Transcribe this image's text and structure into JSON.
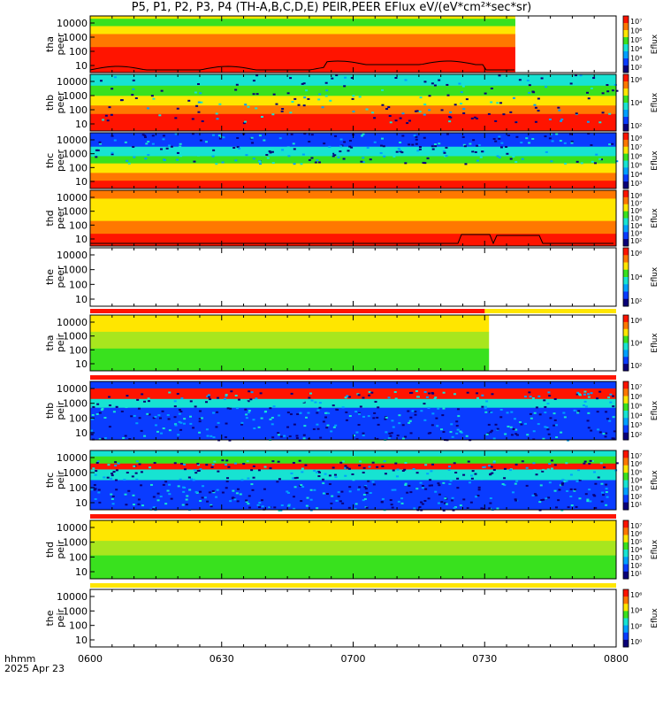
{
  "title": "P5, P1, P2, P3, P4 (TH-A,B,C,D,E) PEIR,PEER EFlux eV/(eV*cm²*sec*sr)",
  "footer": {
    "time_label": "hhmm",
    "date_label": "2025 Apr 23"
  },
  "x_ticks": [
    "0600",
    "0630",
    "0700",
    "0730",
    "0800"
  ],
  "chart_data": [
    {
      "type": "heatmap",
      "panel": "tha-peer",
      "ylabel": [
        "tha",
        "peer"
      ],
      "yticks": [
        "10000",
        "1000",
        "100",
        "10"
      ],
      "colorbar_label": "Eflux",
      "colorbar_ticks": [
        "10⁷",
        "10⁶",
        "10⁵",
        "10⁴",
        "10³",
        "10²"
      ],
      "data_until": "0737",
      "dominant": "red/orange",
      "overlay_curve": true
    },
    {
      "type": "heatmap",
      "panel": "thb-peer",
      "ylabel": [
        "thb",
        "peer"
      ],
      "yticks": [
        "10000",
        "1000",
        "100",
        "10"
      ],
      "colorbar_label": "Eflux",
      "colorbar_ticks": [
        "10⁶",
        "10⁴",
        "10²"
      ],
      "data_until": "0800",
      "dominant": "green/cyan above, red below"
    },
    {
      "type": "heatmap",
      "panel": "thc-peer",
      "ylabel": [
        "thc",
        "peer"
      ],
      "yticks": [
        "10000",
        "1000",
        "100",
        "10"
      ],
      "colorbar_label": "Eflux",
      "colorbar_ticks": [
        "10⁸",
        "10⁷",
        "10⁶",
        "10⁵",
        "10⁴",
        "10³"
      ],
      "data_until": "0800",
      "dominant": "blue noise above, red below"
    },
    {
      "type": "heatmap",
      "panel": "thd-peer",
      "ylabel": [
        "thd",
        "peer"
      ],
      "yticks": [
        "10000",
        "1000",
        "100",
        "10"
      ],
      "colorbar_label": "Eflux",
      "colorbar_ticks": [
        "10⁸",
        "10⁷",
        "10⁶",
        "10⁵",
        "10⁴",
        "10³",
        "10²"
      ],
      "data_until": "0800",
      "dominant": "orange/red",
      "overlay_curve": true
    },
    {
      "type": "heatmap",
      "panel": "the-peer",
      "ylabel": [
        "the",
        "peer"
      ],
      "yticks": [
        "10000",
        "1000",
        "100",
        "10"
      ],
      "colorbar_label": "Eflux",
      "colorbar_ticks": [
        "10⁶",
        "10⁴",
        "10²"
      ],
      "data_until": "none"
    },
    {
      "type": "heatmap",
      "panel": "tha-peir",
      "ylabel": [
        "tha",
        "peir"
      ],
      "yticks": [
        "10000",
        "1000",
        "100",
        "10"
      ],
      "colorbar_label": "Eflux",
      "colorbar_ticks": [
        "10⁶",
        "10⁴",
        "10²"
      ],
      "data_until": "0731",
      "dominant": "yellow/green"
    },
    {
      "type": "heatmap",
      "panel": "thb-peir",
      "ylabel": [
        "thb",
        "peir"
      ],
      "yticks": [
        "10000",
        "1000",
        "100",
        "10"
      ],
      "colorbar_label": "Eflux",
      "colorbar_ticks": [
        "10⁷",
        "10⁶",
        "10⁵",
        "10⁴",
        "10³",
        "10²"
      ],
      "data_until": "0800",
      "dominant": "blue noise with red band"
    },
    {
      "type": "heatmap",
      "panel": "thc-peir",
      "ylabel": [
        "thc",
        "peir"
      ],
      "yticks": [
        "10000",
        "1000",
        "100",
        "10"
      ],
      "colorbar_label": "Eflux",
      "colorbar_ticks": [
        "10⁷",
        "10⁶",
        "10⁵",
        "10⁴",
        "10³",
        "10²",
        "10¹"
      ],
      "data_until": "0800",
      "dominant": "blue noise with green/red bands"
    },
    {
      "type": "heatmap",
      "panel": "thd-peir",
      "ylabel": [
        "thd",
        "peir"
      ],
      "yticks": [
        "10000",
        "1000",
        "100",
        "10"
      ],
      "colorbar_label": "Eflux",
      "colorbar_ticks": [
        "10⁷",
        "10⁶",
        "10⁵",
        "10⁴",
        "10³",
        "10²",
        "10¹"
      ],
      "data_until": "0800",
      "dominant": "yellow/green"
    },
    {
      "type": "heatmap",
      "panel": "the-peir",
      "ylabel": [
        "the",
        "peir"
      ],
      "yticks": [
        "10000",
        "1000",
        "100",
        "10"
      ],
      "colorbar_label": "Eflux",
      "colorbar_ticks": [
        "10⁶",
        "10⁴",
        "10²",
        "10⁰"
      ],
      "data_until": "none"
    }
  ],
  "status_bars": [
    {
      "after_panel": "the-peer",
      "red_until": "0730",
      "rest": "yellow"
    },
    {
      "after_panel": "tha-peir",
      "red_until": "0800",
      "rest": "red"
    },
    {
      "after_panel": "thc-peir",
      "red_until": "0800",
      "rest": "red"
    },
    {
      "after_panel": "thd-peir",
      "red_until": "0600",
      "rest": "yellow"
    }
  ],
  "colors": {
    "red": "#ff1400",
    "orange": "#ff7800",
    "yellow": "#ffe600",
    "green": "#39e11e",
    "cyan": "#17e3d2",
    "blue": "#0a3cff",
    "navy": "#0a0078",
    "black": "#000000"
  }
}
